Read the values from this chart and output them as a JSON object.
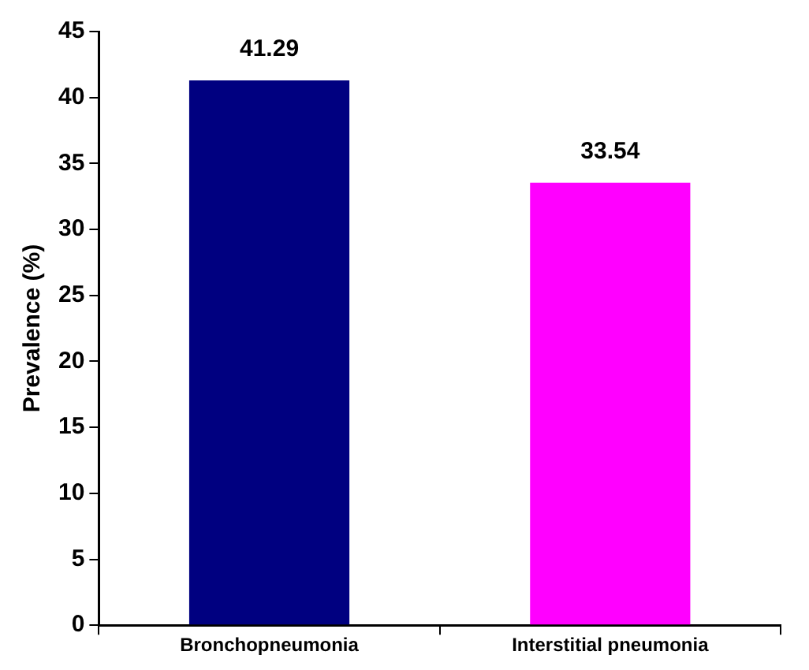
{
  "chart_data": {
    "type": "bar",
    "ylabel": "Prevalence (%)",
    "categories": [
      "Bronchopneumonia",
      "Interstitial pneumonia"
    ],
    "values": [
      41.29,
      33.54
    ],
    "colors": [
      "#000080",
      "#ff00ff"
    ],
    "ylim": [
      0,
      45
    ],
    "yticks": [
      0,
      5,
      10,
      15,
      20,
      25,
      30,
      35,
      40,
      45
    ],
    "grid": false,
    "data_labels": true,
    "legend": false
  }
}
